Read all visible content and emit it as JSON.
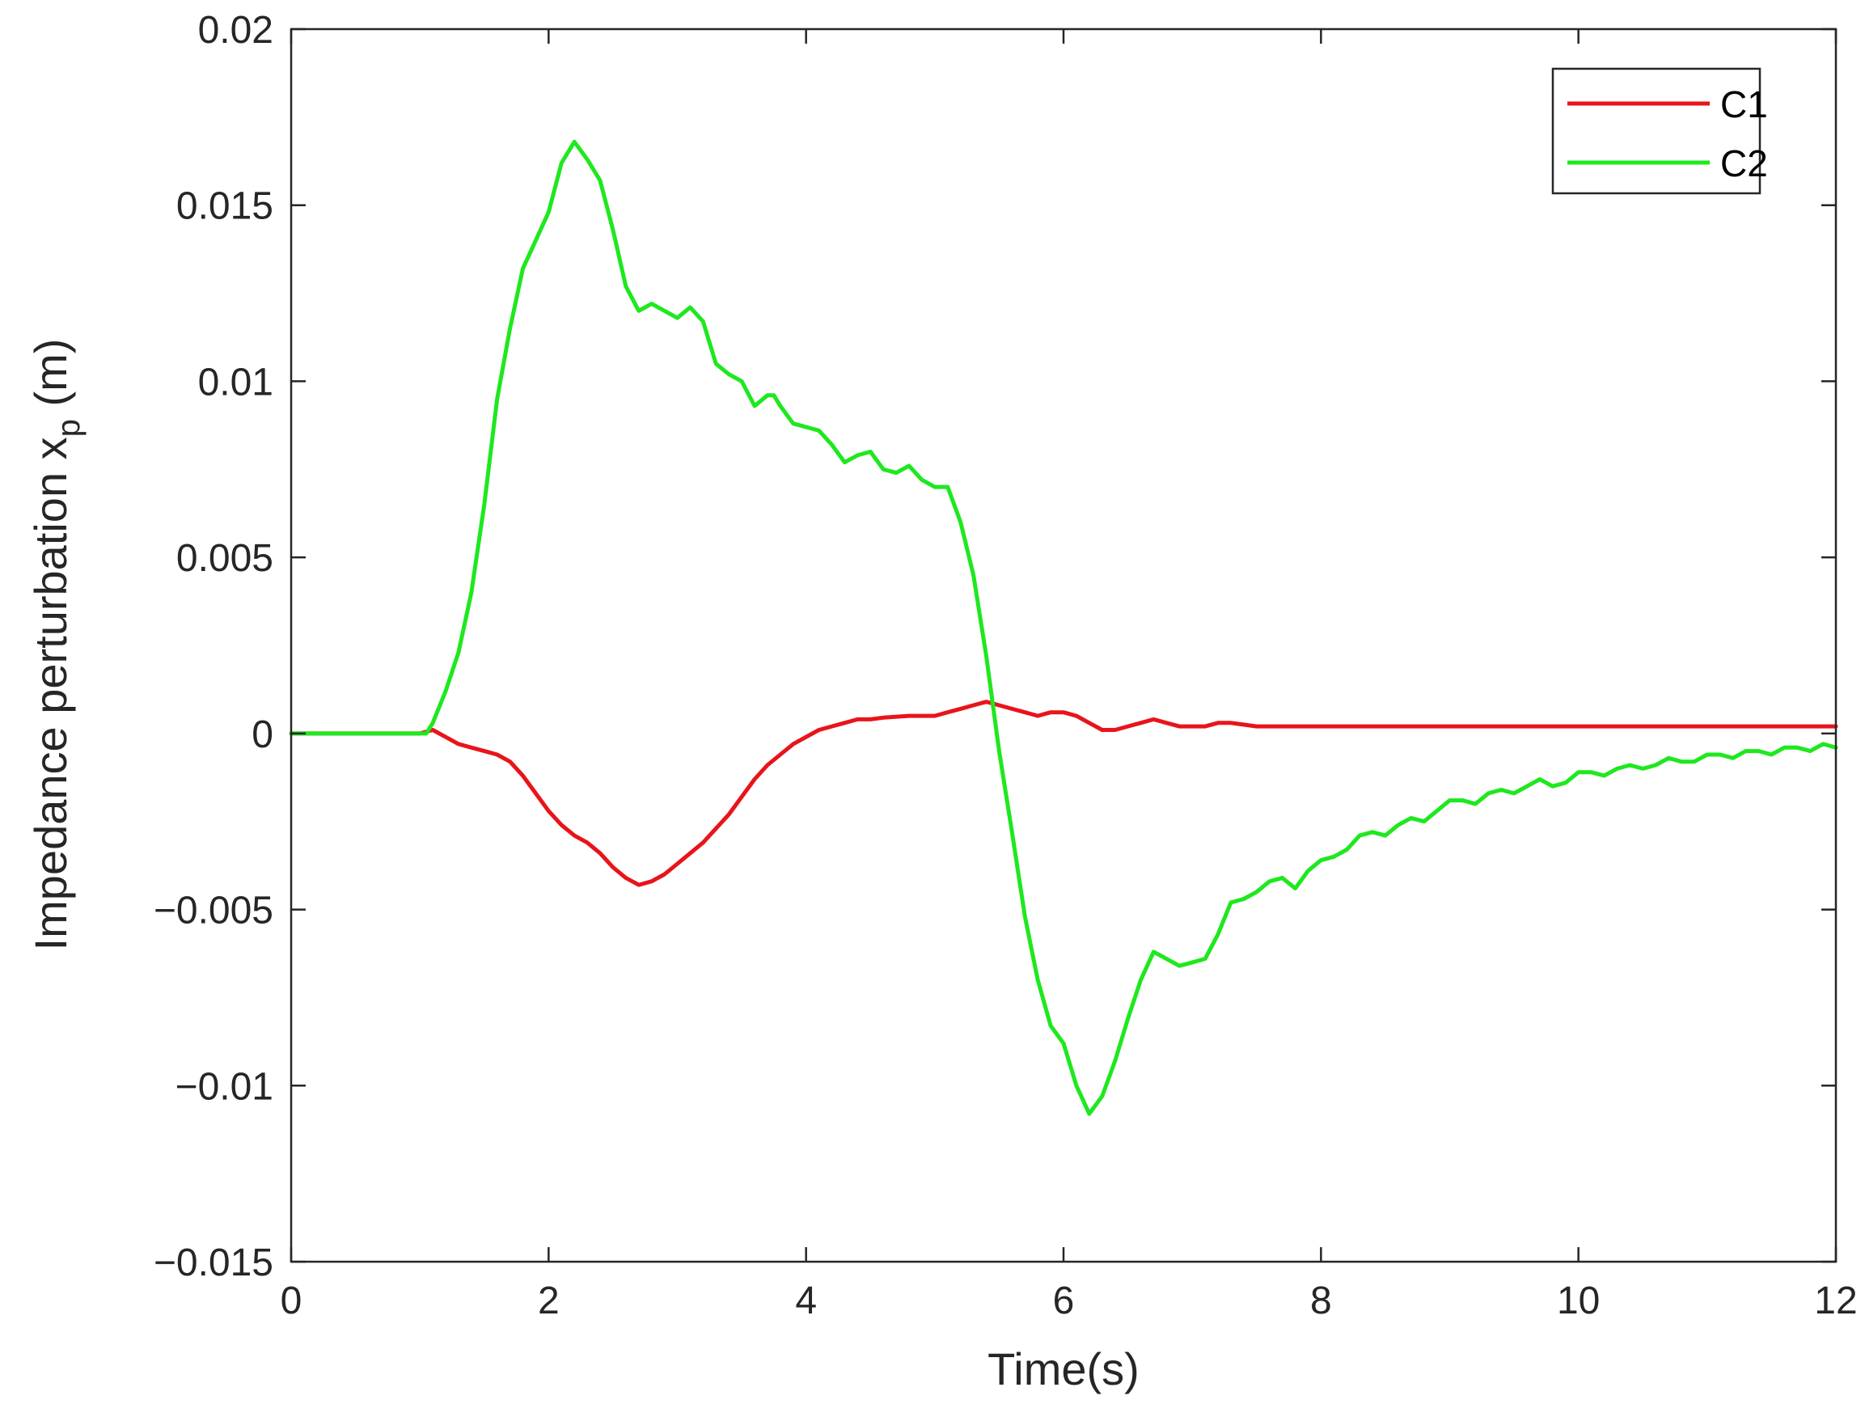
{
  "chart_data": {
    "type": "line",
    "xlabel": "Time(s)",
    "ylabel": {
      "main": "Impedance perturbation x",
      "subscript": "p",
      "unit": " (m)"
    },
    "xlim": [
      0,
      12
    ],
    "ylim": [
      -0.015,
      0.02
    ],
    "x_ticks": [
      0,
      2,
      4,
      6,
      8,
      10,
      12
    ],
    "x_tick_labels": [
      "0",
      "2",
      "4",
      "6",
      "8",
      "10",
      "12"
    ],
    "y_ticks": [
      -0.015,
      -0.01,
      -0.005,
      0,
      0.005,
      0.01,
      0.015,
      0.02
    ],
    "y_tick_labels": [
      "−0.015",
      "−0.01",
      "−0.005",
      "0",
      "0.005",
      "0.01",
      "0.015",
      "0.02"
    ],
    "grid": true,
    "legend_position": "top-right",
    "series": [
      {
        "name": "C1",
        "color": "#e8141a",
        "points": [
          [
            0,
            0
          ],
          [
            1.0,
            0
          ],
          [
            1.1,
            0.0001
          ],
          [
            1.2,
            -0.0001
          ],
          [
            1.3,
            -0.0003
          ],
          [
            1.4,
            -0.0004
          ],
          [
            1.5,
            -0.0005
          ],
          [
            1.6,
            -0.0006
          ],
          [
            1.7,
            -0.0008
          ],
          [
            1.8,
            -0.0012
          ],
          [
            1.9,
            -0.0017
          ],
          [
            2.0,
            -0.0022
          ],
          [
            2.1,
            -0.0026
          ],
          [
            2.2,
            -0.0029
          ],
          [
            2.3,
            -0.0031
          ],
          [
            2.4,
            -0.0034
          ],
          [
            2.5,
            -0.0038
          ],
          [
            2.6,
            -0.0041
          ],
          [
            2.7,
            -0.0043
          ],
          [
            2.8,
            -0.0042
          ],
          [
            2.9,
            -0.004
          ],
          [
            3.0,
            -0.0037
          ],
          [
            3.1,
            -0.0034
          ],
          [
            3.2,
            -0.0031
          ],
          [
            3.3,
            -0.0027
          ],
          [
            3.4,
            -0.0023
          ],
          [
            3.5,
            -0.0018
          ],
          [
            3.6,
            -0.0013
          ],
          [
            3.7,
            -0.0009
          ],
          [
            3.8,
            -0.0006
          ],
          [
            3.9,
            -0.0003
          ],
          [
            4.0,
            -0.0001
          ],
          [
            4.1,
            0.0001
          ],
          [
            4.2,
            0.0002
          ],
          [
            4.3,
            0.0003
          ],
          [
            4.4,
            0.0004
          ],
          [
            4.5,
            0.0004
          ],
          [
            4.6,
            0.00045
          ],
          [
            4.8,
            0.0005
          ],
          [
            5.0,
            0.0005
          ],
          [
            5.1,
            0.0006
          ],
          [
            5.2,
            0.0007
          ],
          [
            5.3,
            0.0008
          ],
          [
            5.4,
            0.0009
          ],
          [
            5.5,
            0.0008
          ],
          [
            5.6,
            0.0007
          ],
          [
            5.7,
            0.0006
          ],
          [
            5.8,
            0.0005
          ],
          [
            5.9,
            0.0006
          ],
          [
            6.0,
            0.0006
          ],
          [
            6.1,
            0.0005
          ],
          [
            6.2,
            0.0003
          ],
          [
            6.3,
            0.0001
          ],
          [
            6.4,
            0.0001
          ],
          [
            6.5,
            0.0002
          ],
          [
            6.6,
            0.0003
          ],
          [
            6.7,
            0.0004
          ],
          [
            6.8,
            0.0003
          ],
          [
            6.9,
            0.0002
          ],
          [
            7.0,
            0.0002
          ],
          [
            7.1,
            0.0002
          ],
          [
            7.2,
            0.0003
          ],
          [
            7.3,
            0.0003
          ],
          [
            7.5,
            0.0002
          ],
          [
            7.7,
            0.0002
          ],
          [
            7.9,
            0.0002
          ],
          [
            8.2,
            0.0002
          ],
          [
            8.6,
            0.0002
          ],
          [
            9.0,
            0.0002
          ],
          [
            10.0,
            0.0002
          ],
          [
            11.0,
            0.0002
          ],
          [
            12.0,
            0.0002
          ]
        ]
      },
      {
        "name": "C2",
        "color": "#1ee81e",
        "points": [
          [
            0,
            0
          ],
          [
            1.0,
            0
          ],
          [
            1.05,
            0
          ],
          [
            1.1,
            0.0003
          ],
          [
            1.2,
            0.0012
          ],
          [
            1.3,
            0.0023
          ],
          [
            1.4,
            0.004
          ],
          [
            1.5,
            0.0065
          ],
          [
            1.6,
            0.0095
          ],
          [
            1.7,
            0.0115
          ],
          [
            1.8,
            0.0132
          ],
          [
            1.9,
            0.014
          ],
          [
            2.0,
            0.0148
          ],
          [
            2.1,
            0.0162
          ],
          [
            2.2,
            0.0168
          ],
          [
            2.3,
            0.0163
          ],
          [
            2.4,
            0.0157
          ],
          [
            2.5,
            0.0143
          ],
          [
            2.6,
            0.0127
          ],
          [
            2.7,
            0.012
          ],
          [
            2.8,
            0.0122
          ],
          [
            2.9,
            0.012
          ],
          [
            3.0,
            0.0118
          ],
          [
            3.1,
            0.0121
          ],
          [
            3.2,
            0.0117
          ],
          [
            3.3,
            0.0105
          ],
          [
            3.4,
            0.0102
          ],
          [
            3.5,
            0.01
          ],
          [
            3.6,
            0.0093
          ],
          [
            3.7,
            0.0096
          ],
          [
            3.75,
            0.0096
          ],
          [
            3.8,
            0.0093
          ],
          [
            3.9,
            0.0088
          ],
          [
            4.0,
            0.0087
          ],
          [
            4.1,
            0.0086
          ],
          [
            4.2,
            0.0082
          ],
          [
            4.3,
            0.0077
          ],
          [
            4.4,
            0.0079
          ],
          [
            4.5,
            0.008
          ],
          [
            4.6,
            0.0075
          ],
          [
            4.7,
            0.0074
          ],
          [
            4.8,
            0.0076
          ],
          [
            4.9,
            0.0072
          ],
          [
            5.0,
            0.007
          ],
          [
            5.1,
            0.007
          ],
          [
            5.2,
            0.006
          ],
          [
            5.3,
            0.0045
          ],
          [
            5.4,
            0.0022
          ],
          [
            5.5,
            -0.0005
          ],
          [
            5.6,
            -0.0028
          ],
          [
            5.7,
            -0.0052
          ],
          [
            5.8,
            -0.007
          ],
          [
            5.9,
            -0.0083
          ],
          [
            6.0,
            -0.0088
          ],
          [
            6.1,
            -0.01
          ],
          [
            6.2,
            -0.0108
          ],
          [
            6.3,
            -0.0103
          ],
          [
            6.4,
            -0.0093
          ],
          [
            6.5,
            -0.0081
          ],
          [
            6.6,
            -0.007
          ],
          [
            6.7,
            -0.0062
          ],
          [
            6.8,
            -0.0064
          ],
          [
            6.9,
            -0.0066
          ],
          [
            7.0,
            -0.0065
          ],
          [
            7.1,
            -0.0064
          ],
          [
            7.2,
            -0.0057
          ],
          [
            7.3,
            -0.0048
          ],
          [
            7.4,
            -0.0047
          ],
          [
            7.5,
            -0.0045
          ],
          [
            7.6,
            -0.0042
          ],
          [
            7.7,
            -0.0041
          ],
          [
            7.8,
            -0.0044
          ],
          [
            7.9,
            -0.0039
          ],
          [
            8.0,
            -0.0036
          ],
          [
            8.1,
            -0.0035
          ],
          [
            8.2,
            -0.0033
          ],
          [
            8.3,
            -0.0029
          ],
          [
            8.4,
            -0.0028
          ],
          [
            8.5,
            -0.0029
          ],
          [
            8.6,
            -0.0026
          ],
          [
            8.7,
            -0.0024
          ],
          [
            8.8,
            -0.0025
          ],
          [
            8.9,
            -0.0022
          ],
          [
            9.0,
            -0.0019
          ],
          [
            9.1,
            -0.0019
          ],
          [
            9.2,
            -0.002
          ],
          [
            9.3,
            -0.0017
          ],
          [
            9.4,
            -0.0016
          ],
          [
            9.5,
            -0.0017
          ],
          [
            9.6,
            -0.0015
          ],
          [
            9.7,
            -0.0013
          ],
          [
            9.8,
            -0.0015
          ],
          [
            9.9,
            -0.0014
          ],
          [
            10.0,
            -0.0011
          ],
          [
            10.1,
            -0.0011
          ],
          [
            10.2,
            -0.0012
          ],
          [
            10.3,
            -0.001
          ],
          [
            10.4,
            -0.0009
          ],
          [
            10.5,
            -0.001
          ],
          [
            10.6,
            -0.0009
          ],
          [
            10.7,
            -0.0007
          ],
          [
            10.8,
            -0.0008
          ],
          [
            10.9,
            -0.0008
          ],
          [
            11.0,
            -0.0006
          ],
          [
            11.1,
            -0.0006
          ],
          [
            11.2,
            -0.0007
          ],
          [
            11.3,
            -0.0005
          ],
          [
            11.4,
            -0.0005
          ],
          [
            11.5,
            -0.0006
          ],
          [
            11.6,
            -0.0004
          ],
          [
            11.7,
            -0.0004
          ],
          [
            11.8,
            -0.0005
          ],
          [
            11.9,
            -0.0003
          ],
          [
            12.0,
            -0.0004
          ]
        ]
      }
    ]
  }
}
